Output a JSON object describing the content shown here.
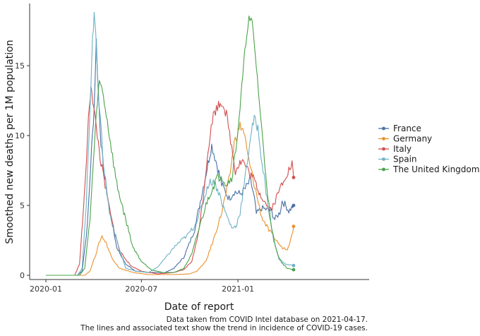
{
  "chart_data": {
    "type": "line",
    "xlabel": "Date of report",
    "ylabel": "Smoothed new deaths per 1M population",
    "xlim": [
      "2020-01-01",
      "2021-04-17"
    ],
    "ylim": [
      0,
      18.5
    ],
    "x_ticks": [
      {
        "date": "2020-01-01",
        "label": "2020-01"
      },
      {
        "date": "2020-07-01",
        "label": "2020-07"
      },
      {
        "date": "2021-01-01",
        "label": "2021-01"
      }
    ],
    "y_ticks": [
      0,
      5,
      10,
      15
    ],
    "grid": false,
    "legend_position": "right",
    "caption": [
      "Data taken from COVID Intel database on 2021-04-17.",
      "The lines and associated text show the trend in incidence of COVID-19 cases."
    ],
    "series": [
      {
        "name": "France",
        "color": "#4a70a5",
        "end_value": 5.0,
        "points": [
          [
            "2020-01-01",
            0
          ],
          [
            "2020-03-01",
            0
          ],
          [
            "2020-03-10",
            0.3
          ],
          [
            "2020-03-20",
            3.5
          ],
          [
            "2020-03-28",
            9
          ],
          [
            "2020-04-02",
            12
          ],
          [
            "2020-04-06",
            16.8
          ],
          [
            "2020-04-10",
            13
          ],
          [
            "2020-04-15",
            9.5
          ],
          [
            "2020-04-20",
            7.5
          ],
          [
            "2020-04-30",
            5
          ],
          [
            "2020-05-15",
            2
          ],
          [
            "2020-06-01",
            0.8
          ],
          [
            "2020-06-20",
            0.3
          ],
          [
            "2020-07-15",
            0.2
          ],
          [
            "2020-08-15",
            0.2
          ],
          [
            "2020-09-01",
            0.5
          ],
          [
            "2020-09-20",
            1.3
          ],
          [
            "2020-10-10",
            3.2
          ],
          [
            "2020-10-25",
            6
          ],
          [
            "2020-11-05",
            8
          ],
          [
            "2020-11-12",
            9.3
          ],
          [
            "2020-11-20",
            8.2
          ],
          [
            "2020-12-01",
            6.5
          ],
          [
            "2020-12-15",
            5.5
          ],
          [
            "2020-12-25",
            6
          ],
          [
            "2021-01-05",
            5.8
          ],
          [
            "2021-01-15",
            6.2
          ],
          [
            "2021-01-25",
            6.8
          ],
          [
            "2021-02-01",
            5.5
          ],
          [
            "2021-02-05",
            4.4
          ],
          [
            "2021-02-15",
            4.8
          ],
          [
            "2021-02-25",
            4.7
          ],
          [
            "2021-03-05",
            4.6
          ],
          [
            "2021-03-12",
            4.0
          ],
          [
            "2021-03-22",
            4.5
          ],
          [
            "2021-03-26",
            5.3
          ],
          [
            "2021-04-02",
            5.0
          ],
          [
            "2021-04-08",
            4.6
          ],
          [
            "2021-04-17",
            5.0
          ]
        ]
      },
      {
        "name": "Germany",
        "color": "#e8912e",
        "end_value": 3.5,
        "points": [
          [
            "2020-01-01",
            0
          ],
          [
            "2020-03-15",
            0
          ],
          [
            "2020-03-25",
            0.3
          ],
          [
            "2020-04-05",
            1.5
          ],
          [
            "2020-04-13",
            2.5
          ],
          [
            "2020-04-17",
            2.8
          ],
          [
            "2020-04-25",
            2.3
          ],
          [
            "2020-05-05",
            1.3
          ],
          [
            "2020-05-20",
            0.5
          ],
          [
            "2020-06-15",
            0.2
          ],
          [
            "2020-07-15",
            0.05
          ],
          [
            "2020-09-01",
            0.05
          ],
          [
            "2020-10-01",
            0.1
          ],
          [
            "2020-10-15",
            0.3
          ],
          [
            "2020-11-01",
            1.0
          ],
          [
            "2020-11-15",
            2.5
          ],
          [
            "2020-12-01",
            4.5
          ],
          [
            "2020-12-15",
            6.8
          ],
          [
            "2020-12-25",
            9.5
          ],
          [
            "2021-01-05",
            10.7
          ],
          [
            "2021-01-12",
            10.3
          ],
          [
            "2021-01-20",
            8.5
          ],
          [
            "2021-02-01",
            6.5
          ],
          [
            "2021-02-15",
            4.2
          ],
          [
            "2021-03-01",
            3.2
          ],
          [
            "2021-03-15",
            2.5
          ],
          [
            "2021-03-25",
            2.0
          ],
          [
            "2021-04-05",
            1.9
          ],
          [
            "2021-04-12",
            2.6
          ],
          [
            "2021-04-17",
            3.5
          ]
        ]
      },
      {
        "name": "Italy",
        "color": "#d24e4e",
        "end_value": 7.0,
        "points": [
          [
            "2020-01-01",
            0
          ],
          [
            "2020-02-25",
            0
          ],
          [
            "2020-03-05",
            0.8
          ],
          [
            "2020-03-15",
            6
          ],
          [
            "2020-03-22",
            11
          ],
          [
            "2020-03-27",
            13.7
          ],
          [
            "2020-04-01",
            12
          ],
          [
            "2020-04-08",
            10
          ],
          [
            "2020-04-15",
            8
          ],
          [
            "2020-04-25",
            6
          ],
          [
            "2020-05-05",
            4
          ],
          [
            "2020-05-20",
            1.8
          ],
          [
            "2020-06-10",
            0.7
          ],
          [
            "2020-07-01",
            0.3
          ],
          [
            "2020-08-01",
            0.1
          ],
          [
            "2020-09-01",
            0.2
          ],
          [
            "2020-09-20",
            0.4
          ],
          [
            "2020-10-05",
            1.0
          ],
          [
            "2020-10-15",
            2.5
          ],
          [
            "2020-10-25",
            5
          ],
          [
            "2020-11-05",
            9
          ],
          [
            "2020-11-15",
            11.5
          ],
          [
            "2020-11-25",
            12.2
          ],
          [
            "2020-12-02",
            12.4
          ],
          [
            "2020-12-10",
            11.5
          ],
          [
            "2020-12-20",
            9.2
          ],
          [
            "2020-12-27",
            7.5
          ],
          [
            "2021-01-03",
            8.0
          ],
          [
            "2021-01-10",
            8.2
          ],
          [
            "2021-01-20",
            7.5
          ],
          [
            "2021-02-01",
            6.8
          ],
          [
            "2021-02-10",
            6.0
          ],
          [
            "2021-02-25",
            5.0
          ],
          [
            "2021-03-05",
            4.7
          ],
          [
            "2021-03-15",
            5.5
          ],
          [
            "2021-03-25",
            6.5
          ],
          [
            "2021-04-02",
            7.2
          ],
          [
            "2021-04-10",
            7.6
          ],
          [
            "2021-04-14",
            8.0
          ],
          [
            "2021-04-17",
            7.0
          ]
        ]
      },
      {
        "name": "Spain",
        "color": "#6eb2c6",
        "end_value": 0.7,
        "points": [
          [
            "2020-01-01",
            0
          ],
          [
            "2020-03-01",
            0
          ],
          [
            "2020-03-10",
            0.5
          ],
          [
            "2020-03-18",
            5
          ],
          [
            "2020-03-25",
            12
          ],
          [
            "2020-03-30",
            17
          ],
          [
            "2020-04-02",
            18.5
          ],
          [
            "2020-04-05",
            17.5
          ],
          [
            "2020-04-10",
            13
          ],
          [
            "2020-04-20",
            8
          ],
          [
            "2020-05-01",
            4.5
          ],
          [
            "2020-05-15",
            2.5
          ],
          [
            "2020-06-01",
            0.5
          ],
          [
            "2020-06-20",
            0.3
          ],
          [
            "2020-07-15",
            0.2
          ],
          [
            "2020-08-01",
            0.6
          ],
          [
            "2020-08-15",
            1.2
          ],
          [
            "2020-09-01",
            2.0
          ],
          [
            "2020-09-15",
            2.5
          ],
          [
            "2020-09-25",
            2.8
          ],
          [
            "2020-10-10",
            3.5
          ],
          [
            "2020-10-25",
            5
          ],
          [
            "2020-11-05",
            6.5
          ],
          [
            "2020-11-15",
            6.8
          ],
          [
            "2020-11-25",
            6.0
          ],
          [
            "2020-12-05",
            4.8
          ],
          [
            "2020-12-20",
            3.4
          ],
          [
            "2020-12-28",
            3.5
          ],
          [
            "2021-01-05",
            4.5
          ],
          [
            "2021-01-15",
            7
          ],
          [
            "2021-01-25",
            10
          ],
          [
            "2021-02-01",
            11.2
          ],
          [
            "2021-02-08",
            10.5
          ],
          [
            "2021-02-18",
            7.5
          ],
          [
            "2021-03-01",
            4.5
          ],
          [
            "2021-03-10",
            2.5
          ],
          [
            "2021-03-20",
            1.2
          ],
          [
            "2021-04-01",
            0.8
          ],
          [
            "2021-04-17",
            0.7
          ]
        ]
      },
      {
        "name": "The United Kingdom",
        "color": "#4aa34a",
        "end_value": 0.4,
        "points": [
          [
            "2020-01-01",
            0
          ],
          [
            "2020-03-05",
            0
          ],
          [
            "2020-03-15",
            0.5
          ],
          [
            "2020-03-25",
            4
          ],
          [
            "2020-04-02",
            9
          ],
          [
            "2020-04-08",
            12.5
          ],
          [
            "2020-04-12",
            13.8
          ],
          [
            "2020-04-18",
            13.2
          ],
          [
            "2020-04-25",
            11.5
          ],
          [
            "2020-05-05",
            9.0
          ],
          [
            "2020-05-15",
            6.5
          ],
          [
            "2020-06-01",
            4.0
          ],
          [
            "2020-06-15",
            2.0
          ],
          [
            "2020-07-01",
            1.0
          ],
          [
            "2020-07-20",
            0.4
          ],
          [
            "2020-08-10",
            0.2
          ],
          [
            "2020-09-01",
            0.2
          ],
          [
            "2020-09-20",
            0.5
          ],
          [
            "2020-10-05",
            1.5
          ],
          [
            "2020-10-20",
            3.5
          ],
          [
            "2020-11-05",
            5.5
          ],
          [
            "2020-11-20",
            6.8
          ],
          [
            "2020-11-30",
            7.2
          ],
          [
            "2020-12-10",
            6.5
          ],
          [
            "2020-12-20",
            7.0
          ],
          [
            "2020-12-28",
            9
          ],
          [
            "2021-01-05",
            12
          ],
          [
            "2021-01-12",
            15
          ],
          [
            "2021-01-18",
            17.5
          ],
          [
            "2021-01-22",
            18.3
          ],
          [
            "2021-01-28",
            18.0
          ],
          [
            "2021-02-05",
            15
          ],
          [
            "2021-02-15",
            10.5
          ],
          [
            "2021-02-25",
            6.5
          ],
          [
            "2021-03-05",
            3.5
          ],
          [
            "2021-03-15",
            1.8
          ],
          [
            "2021-03-25",
            0.9
          ],
          [
            "2021-04-05",
            0.5
          ],
          [
            "2021-04-17",
            0.4
          ]
        ]
      }
    ]
  }
}
